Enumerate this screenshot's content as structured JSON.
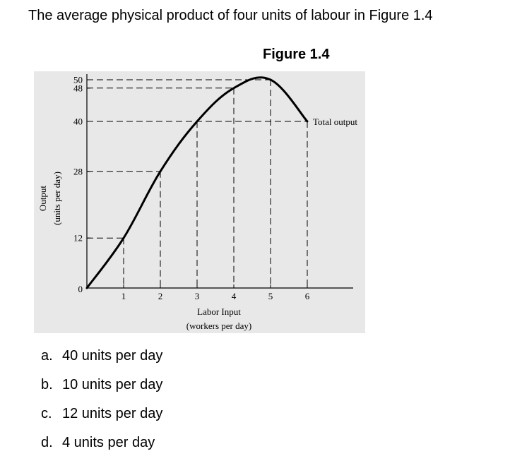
{
  "question": {
    "text": "The average physical product of four units of labour in Figure 1.4"
  },
  "figure": {
    "caption": "Figure 1.4"
  },
  "chart_data": {
    "type": "line",
    "title": "",
    "xlabel_line1": "Labor Input",
    "xlabel_line2": "(workers per day)",
    "ylabel_line1": "Output",
    "ylabel_line2": "(units per day)",
    "x": [
      0,
      1,
      2,
      3,
      4,
      5,
      6
    ],
    "series": [
      {
        "name": "Total output",
        "values": [
          0,
          12,
          28,
          40,
          48,
          50,
          40
        ]
      }
    ],
    "x_ticks": [
      "1",
      "2",
      "3",
      "4",
      "5",
      "6"
    ],
    "y_ticks": [
      "0",
      "12",
      "28",
      "40",
      "48",
      "50"
    ],
    "xlim": [
      0,
      7.5
    ],
    "ylim": [
      0,
      58
    ],
    "grid": "dashed guide lines from each point to both axes",
    "colors": {
      "plot_background": "#e8e8e8",
      "line": "#000000"
    }
  },
  "answers": [
    {
      "letter": "a.",
      "text": "40 units per day"
    },
    {
      "letter": "b.",
      "text": "10 units per day"
    },
    {
      "letter": "c.",
      "text": "12 units per day"
    },
    {
      "letter": "d.",
      "text": "4 units per day"
    }
  ]
}
